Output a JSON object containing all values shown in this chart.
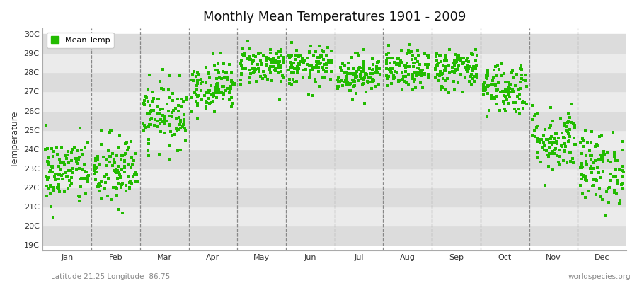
{
  "title": "Monthly Mean Temperatures 1901 - 2009",
  "ylabel": "Temperature",
  "y_ticks": [
    19,
    20,
    21,
    22,
    23,
    24,
    25,
    26,
    27,
    28,
    29,
    30
  ],
  "y_tick_labels": [
    "19C",
    "20C",
    "21C",
    "22C",
    "23C",
    "24C",
    "25C",
    "26C",
    "27C",
    "28C",
    "29C",
    "30C"
  ],
  "ylim": [
    18.7,
    30.3
  ],
  "month_labels": [
    "Jan",
    "Feb",
    "Mar",
    "Apr",
    "May",
    "Jun",
    "Jul",
    "Aug",
    "Sep",
    "Oct",
    "Nov",
    "Dec"
  ],
  "dot_color": "#22bb00",
  "dot_size": 5,
  "background_color": "#ffffff",
  "plot_bg_color_dark": "#dcdcdc",
  "plot_bg_color_light": "#ebebeb",
  "subtitle": "Latitude 21.25 Longitude -86.75",
  "watermark": "worldspecies.org",
  "legend_label": "Mean Temp",
  "n_years": 109,
  "monthly_means": [
    22.8,
    22.8,
    25.8,
    27.3,
    28.4,
    28.3,
    27.9,
    28.1,
    28.2,
    27.2,
    24.5,
    23.0
  ],
  "monthly_stds": [
    0.9,
    1.0,
    0.85,
    0.65,
    0.52,
    0.52,
    0.52,
    0.52,
    0.55,
    0.7,
    0.85,
    0.95
  ],
  "seed": 42
}
